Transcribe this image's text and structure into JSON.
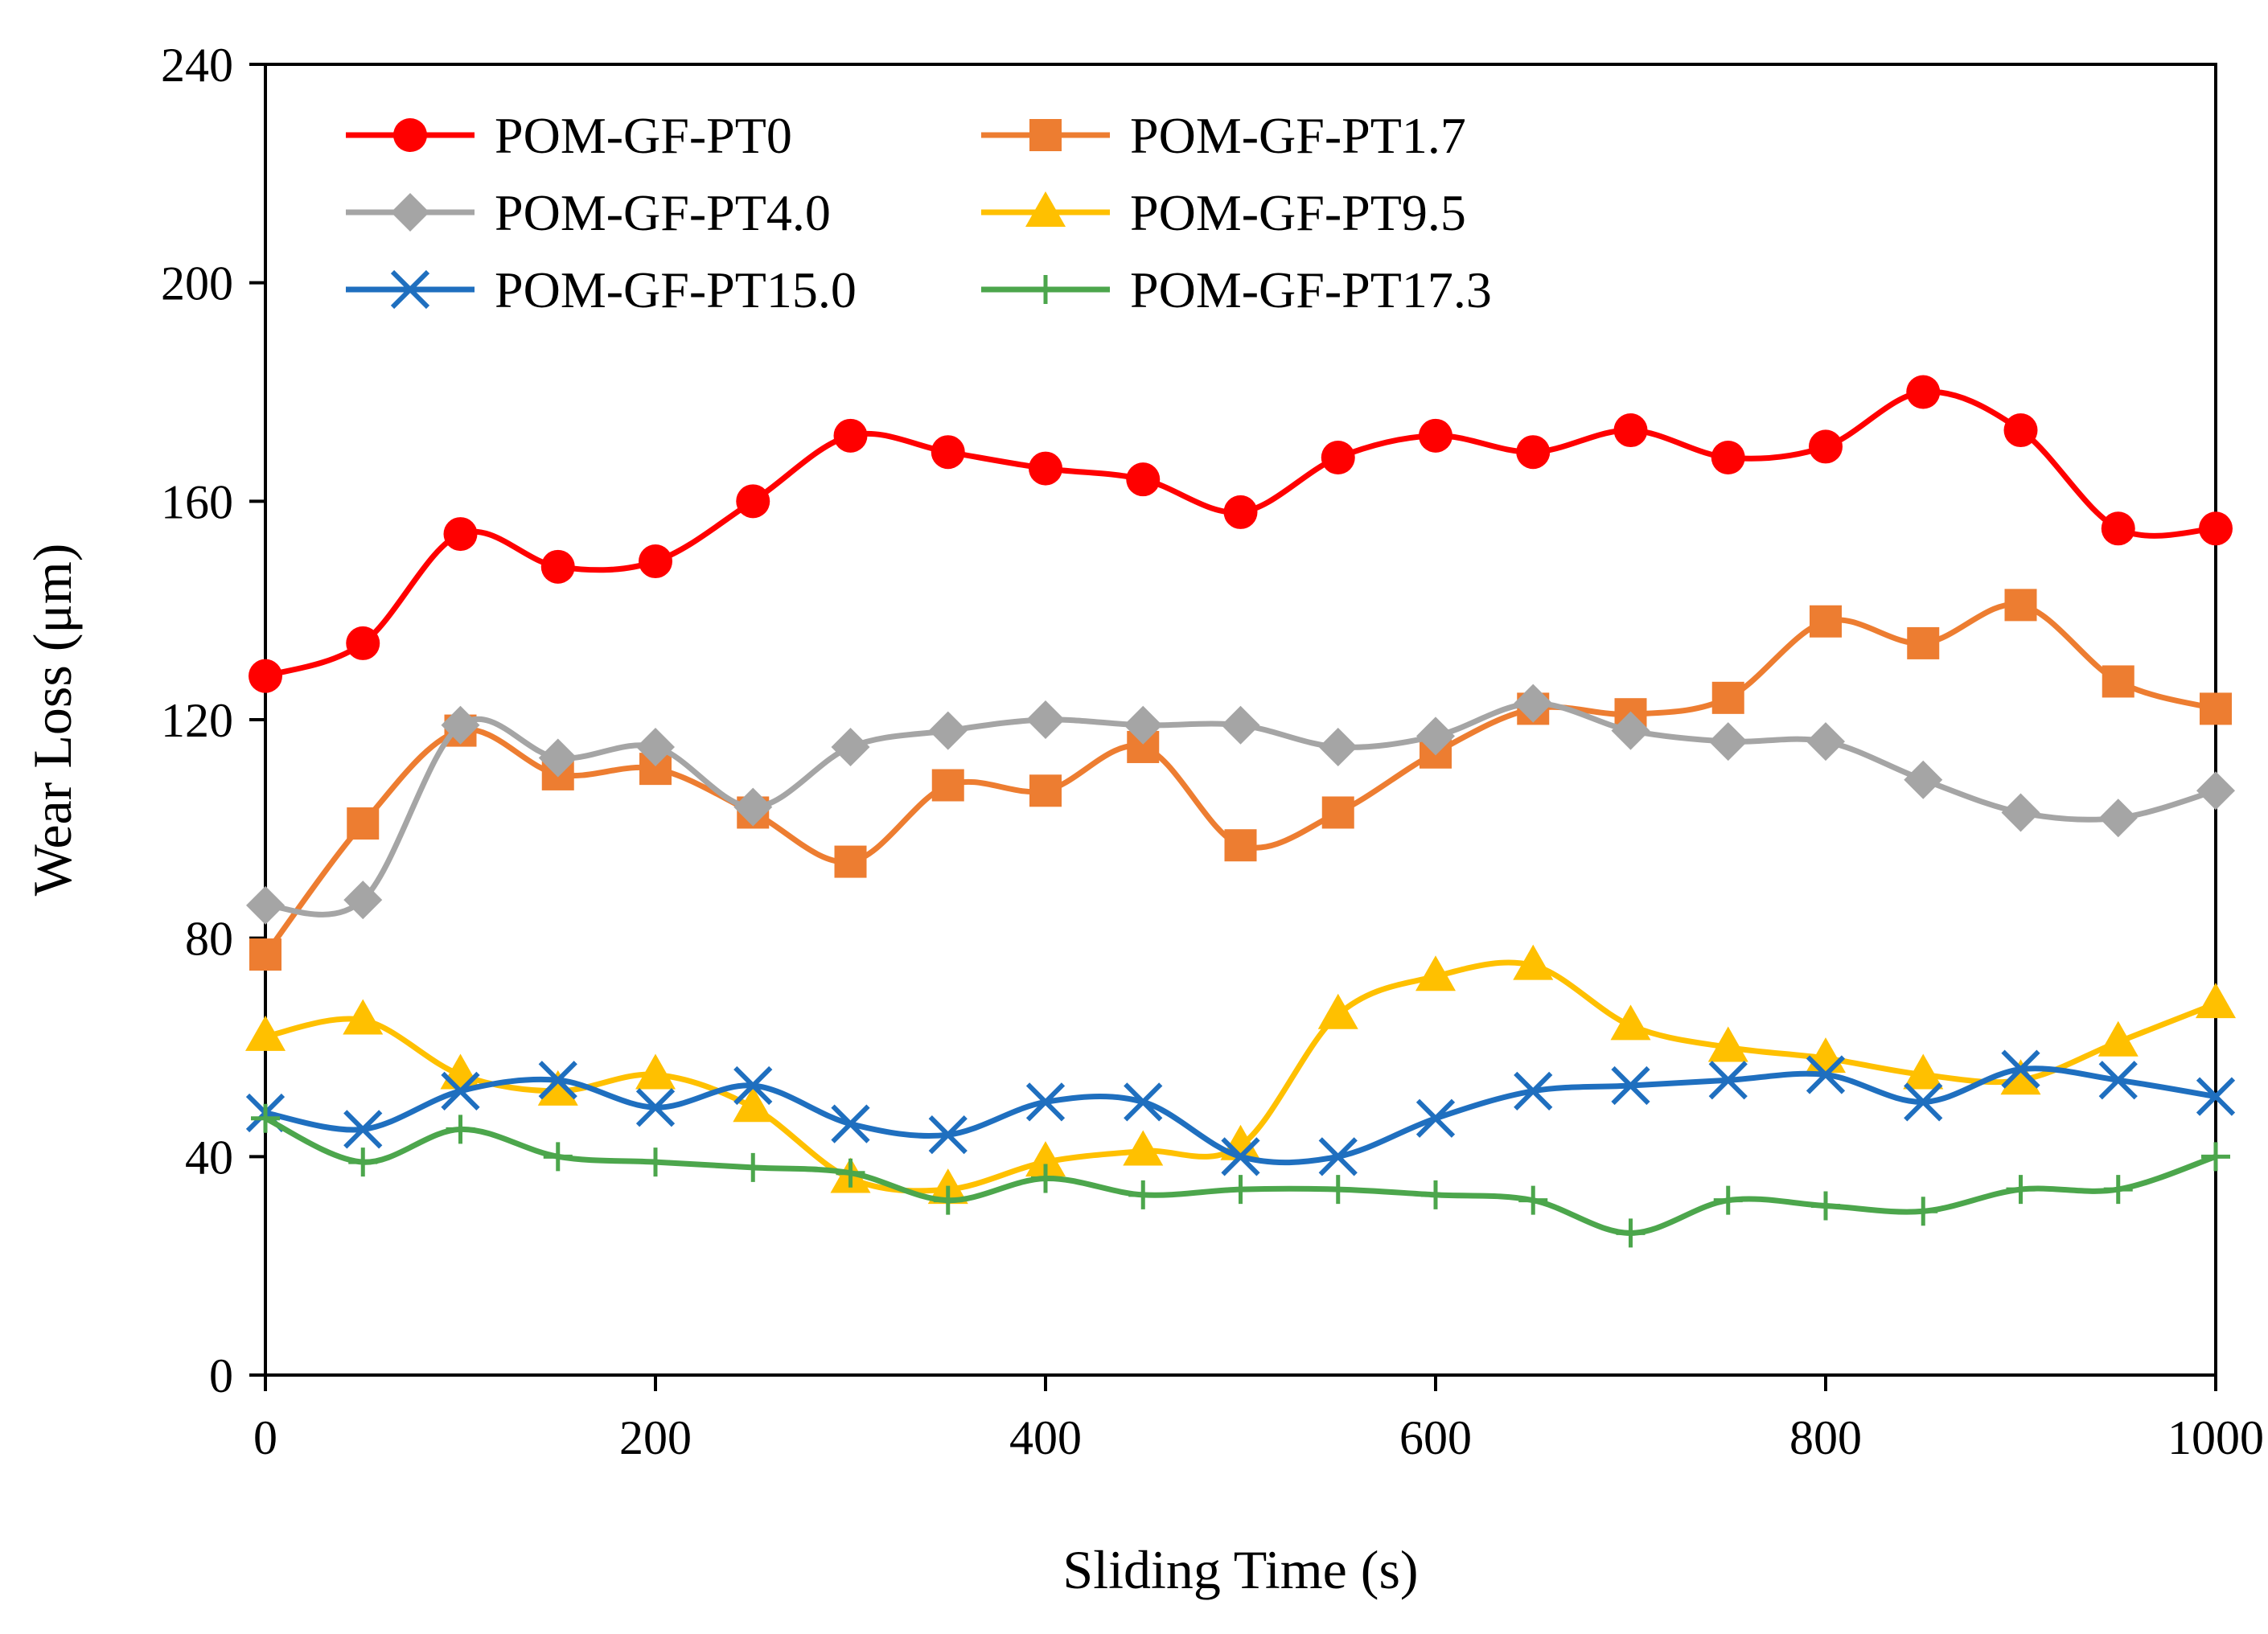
{
  "chart_data": {
    "type": "line",
    "title": "",
    "xlabel": "Sliding Time (s)",
    "ylabel": "Wear Loss (μm)",
    "xlim": [
      0,
      1000
    ],
    "ylim": [
      0,
      240
    ],
    "xticks": [
      "0",
      "200",
      "400",
      "600",
      "800",
      "1000"
    ],
    "yticks": [
      "0",
      "40",
      "80",
      "120",
      "160",
      "200",
      "240"
    ],
    "grid": false,
    "legend_position": "top-left",
    "x": [
      0,
      50,
      100,
      150,
      200,
      250,
      300,
      350,
      400,
      450,
      500,
      550,
      600,
      650,
      700,
      750,
      800,
      850,
      900,
      950,
      1000
    ],
    "series": [
      {
        "name": "POM-GF-PT0",
        "color": "#ff0000",
        "marker": "circle",
        "values": [
          128,
          134,
          154,
          148,
          149,
          160,
          172,
          169,
          166,
          164,
          158,
          168,
          172,
          169,
          173,
          168,
          170,
          180,
          173,
          155,
          155
        ]
      },
      {
        "name": "POM-GF-PT1.7",
        "color": "#ed7d31",
        "marker": "square",
        "values": [
          77,
          101,
          118,
          110,
          111,
          103,
          94,
          108,
          107,
          115,
          97,
          103,
          114,
          122,
          121,
          124,
          138,
          134,
          141,
          127,
          122
        ]
      },
      {
        "name": "POM-GF-PT4.0",
        "color": "#a5a5a5",
        "marker": "diamond",
        "values": [
          86,
          87,
          119,
          113,
          115,
          104,
          115,
          118,
          120,
          119,
          119,
          115,
          117,
          123,
          118,
          116,
          116,
          109,
          103,
          102,
          107
        ]
      },
      {
        "name": "POM-GF-PT9.5",
        "color": "#ffc000",
        "marker": "triangle",
        "values": [
          62,
          65,
          55,
          52,
          55,
          49,
          36,
          34,
          39,
          41,
          42,
          66,
          73,
          75,
          64,
          60,
          58,
          55,
          54,
          61,
          68
        ]
      },
      {
        "name": "POM-GF-PT15.0",
        "color": "#1f6fbf",
        "marker": "x",
        "values": [
          48,
          45,
          52,
          54,
          49,
          53,
          46,
          44,
          50,
          50,
          40,
          40,
          47,
          52,
          53,
          54,
          55,
          50,
          56,
          54,
          51
        ]
      },
      {
        "name": "POM-GF-PT17.3",
        "color": "#4ca64c",
        "marker": "plus",
        "values": [
          47,
          39,
          45,
          40,
          39,
          38,
          37,
          32,
          36,
          33,
          34,
          34,
          33,
          32,
          26,
          32,
          31,
          30,
          34,
          34,
          40
        ]
      }
    ]
  }
}
